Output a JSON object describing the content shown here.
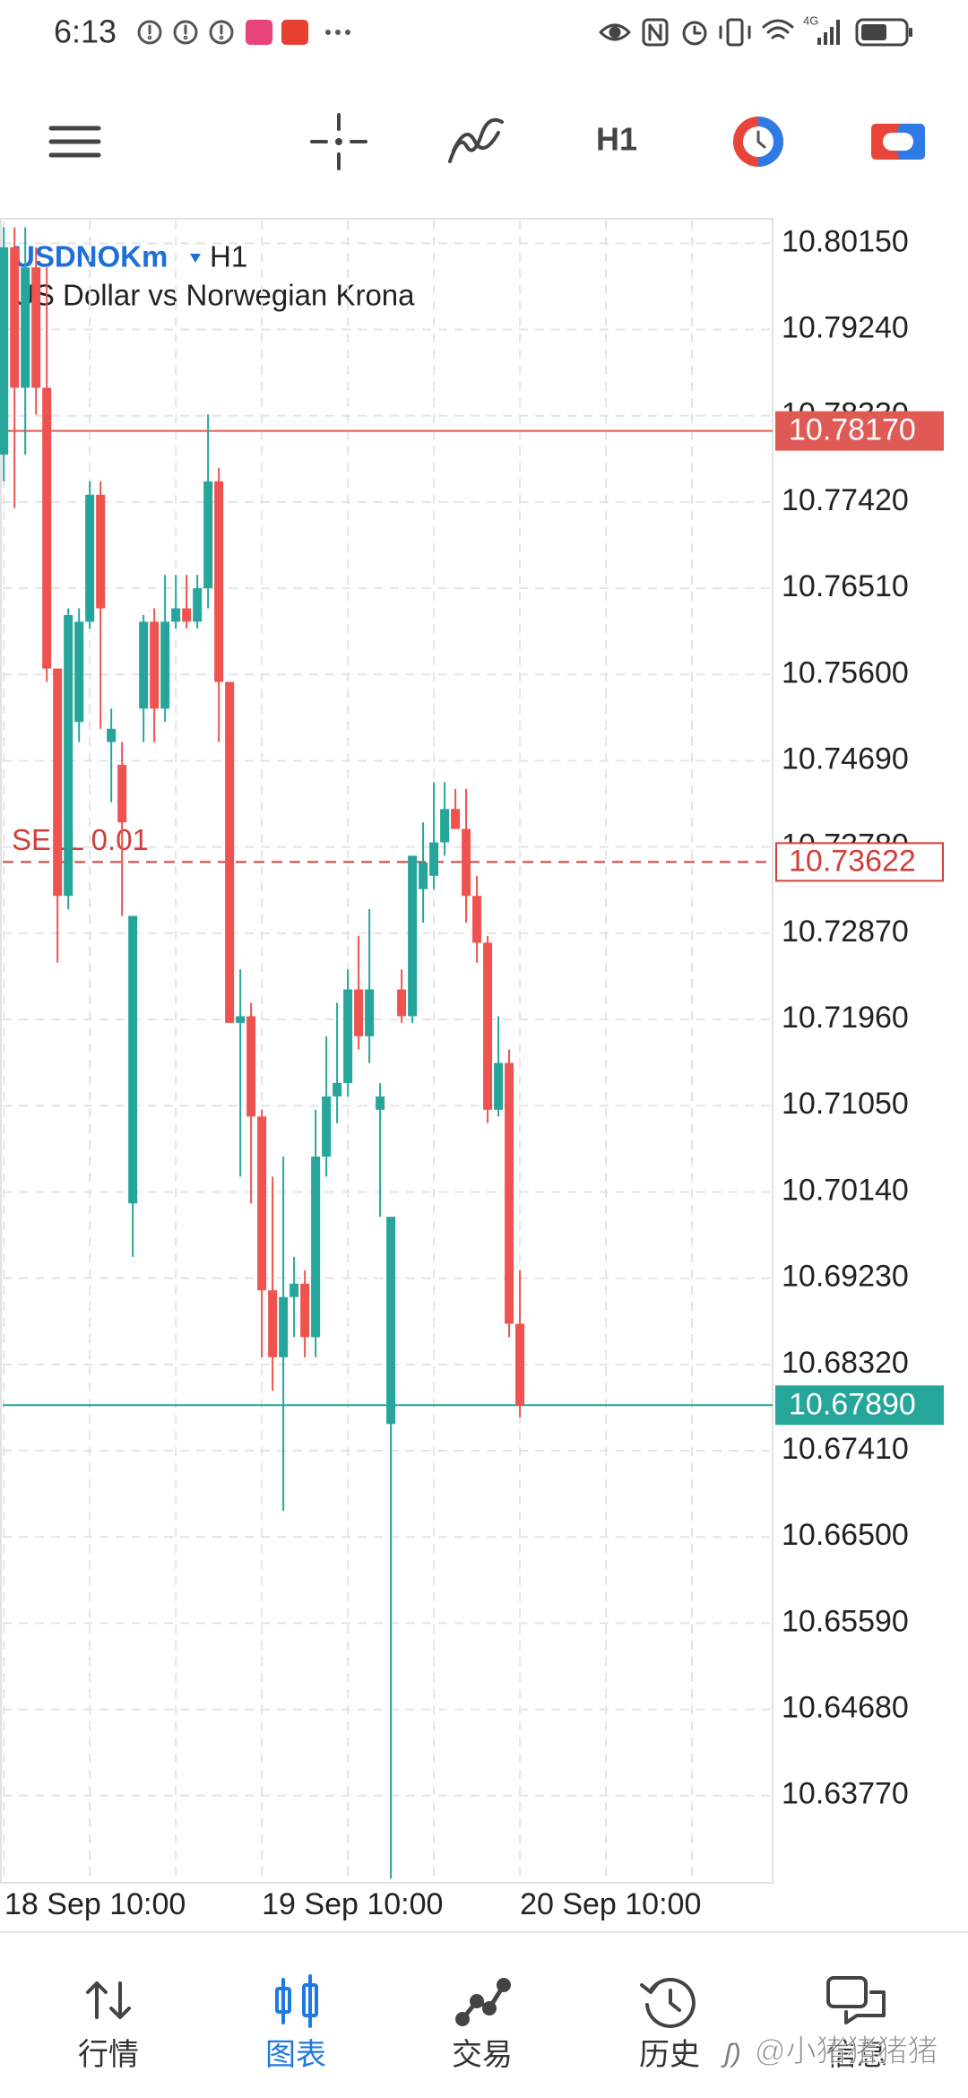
{
  "status_bar": {
    "time": "6:13",
    "network": "4G"
  },
  "toolbar": {
    "timeframe": "H1"
  },
  "chart_data": {
    "type": "candlestick",
    "symbol": "USDNOKm",
    "timeframe": "H1",
    "description": "US Dollar vs Norwegian Krona",
    "up_color": "#26a69a",
    "down_color": "#ef5350",
    "grid": true,
    "x": [
      0,
      1,
      2,
      3,
      4,
      5,
      6,
      7,
      8,
      9,
      10,
      11,
      12,
      13,
      14,
      15,
      16,
      17,
      18,
      19,
      20,
      21,
      22,
      23,
      24,
      25,
      26,
      27,
      28,
      29,
      30,
      31,
      32,
      33,
      34,
      35,
      36,
      37,
      38,
      39,
      40,
      41,
      42,
      43,
      44,
      45,
      46,
      47,
      48
    ],
    "open": [
      10.77921,
      10.80108,
      10.78626,
      10.79896,
      10.78626,
      10.75663,
      10.73264,
      10.75099,
      10.76157,
      10.77497,
      10.74887,
      10.74647,
      10.70019,
      10.7524,
      10.76157,
      10.7524,
      10.76157,
      10.76298,
      10.76157,
      10.7651,
      10.77638,
      10.75522,
      10.71924,
      10.71994,
      10.70936,
      10.69102,
      10.68396,
      10.69031,
      10.69172,
      10.68608,
      10.70513,
      10.71148,
      10.71289,
      10.72277,
      10.71783,
      10.71007,
      10.67691,
      10.72277,
      10.71994,
      10.73335,
      10.73476,
      10.73829,
      10.74181,
      10.7397,
      10.73264,
      10.7277,
      10.71007,
      10.71501,
      10.68749
    ],
    "high": [
      10.80319,
      10.80319,
      10.80319,
      10.80108,
      10.79896,
      10.75663,
      10.76298,
      10.76298,
      10.77638,
      10.77638,
      10.7524,
      10.74887,
      10.73053,
      10.76227,
      10.76298,
      10.76651,
      10.76651,
      10.76651,
      10.76651,
      10.78344,
      10.7778,
      10.75522,
      10.72488,
      10.72136,
      10.71007,
      10.70301,
      10.70513,
      10.69455,
      10.69314,
      10.71007,
      10.71783,
      10.72136,
      10.72488,
      10.72841,
      10.73123,
      10.71289,
      10.69878,
      10.72488,
      10.73688,
      10.7404,
      10.74464,
      10.74464,
      10.74393,
      10.74393,
      10.73476,
      10.72841,
      10.71994,
      10.71642,
      10.69314
    ],
    "low": [
      10.77638,
      10.77356,
      10.77921,
      10.78344,
      10.75522,
      10.72559,
      10.73123,
      10.74887,
      10.76086,
      10.75028,
      10.74252,
      10.73053,
      10.69455,
      10.74887,
      10.74887,
      10.75099,
      10.76086,
      10.76086,
      10.76086,
      10.76298,
      10.74887,
      10.71924,
      10.70301,
      10.70019,
      10.68396,
      10.68044,
      10.66774,
      10.68608,
      10.68396,
      10.68396,
      10.70301,
      10.70866,
      10.71148,
      10.71642,
      10.71501,
      10.69878,
      10.62894,
      10.71924,
      10.71924,
      10.72982,
      10.73335,
      10.73688,
      10.7397,
      10.72982,
      10.72559,
      10.70866,
      10.70936,
      10.68608,
      10.67761
    ],
    "close": [
      10.80108,
      10.78626,
      10.79896,
      10.78626,
      10.75663,
      10.73264,
      10.76227,
      10.76157,
      10.77497,
      10.76298,
      10.75028,
      10.7404,
      10.73053,
      10.76157,
      10.7524,
      10.76157,
      10.76298,
      10.76157,
      10.7651,
      10.77638,
      10.75522,
      10.71924,
      10.71994,
      10.70936,
      10.69102,
      10.68396,
      10.69031,
      10.69172,
      10.68608,
      10.70513,
      10.71148,
      10.71289,
      10.72277,
      10.71783,
      10.72277,
      10.71148,
      10.69878,
      10.71994,
      10.73688,
      10.73617,
      10.73829,
      10.74181,
      10.7397,
      10.73264,
      10.7277,
      10.71007,
      10.71501,
      10.68749,
      10.6789
    ],
    "xlim": [
      -0.1,
      71.5
    ],
    "xticks": [
      {
        "value": 0,
        "label": "18 Sep 10:00"
      },
      {
        "value": 8,
        "label": null
      },
      {
        "value": 16,
        "label": null
      },
      {
        "value": 24,
        "label": "19 Sep 10:00"
      },
      {
        "value": 32,
        "label": null
      },
      {
        "value": 40,
        "label": null
      },
      {
        "value": 48,
        "label": "20 Sep 10:00"
      },
      {
        "value": 56,
        "label": null
      },
      {
        "value": 64,
        "label": null
      }
    ],
    "ylim": [
      10.6285,
      10.8039
    ],
    "yticks": [
      {
        "value": 10.8015,
        "label": "10.80150"
      },
      {
        "value": 10.7924,
        "label": "10.79240"
      },
      {
        "value": 10.7833,
        "label": "10.78330"
      },
      {
        "value": 10.7742,
        "label": "10.77420"
      },
      {
        "value": 10.7651,
        "label": "10.76510"
      },
      {
        "value": 10.756,
        "label": "10.75600"
      },
      {
        "value": 10.7469,
        "label": "10.74690"
      },
      {
        "value": 10.7378,
        "label": "10.73780"
      },
      {
        "value": 10.7287,
        "label": "10.72870"
      },
      {
        "value": 10.7196,
        "label": "10.71960"
      },
      {
        "value": 10.7105,
        "label": "10.71050"
      },
      {
        "value": 10.7014,
        "label": "10.70140"
      },
      {
        "value": 10.6923,
        "label": "10.69230"
      },
      {
        "value": 10.6832,
        "label": "10.68320"
      },
      {
        "value": 10.6741,
        "label": "10.67410"
      },
      {
        "value": 10.665,
        "label": "10.66500"
      },
      {
        "value": 10.6559,
        "label": "10.65590"
      },
      {
        "value": 10.6468,
        "label": "10.64680"
      },
      {
        "value": 10.6377,
        "label": "10.63770"
      }
    ],
    "price_lines": [
      {
        "value": 10.7817,
        "label": "10.78170",
        "color": "#e05a55",
        "style": "solid",
        "fill": true
      },
      {
        "value": 10.73622,
        "label": "10.73622",
        "color": "#d23f3a",
        "style": "dashed",
        "fill": false,
        "order": "SELL 0.01"
      },
      {
        "value": 10.6789,
        "label": "10.67890",
        "color": "#26a69a",
        "style": "solid",
        "fill": true
      }
    ]
  },
  "bottom_nav": {
    "items": [
      "行情",
      "图表",
      "交易",
      "历史",
      "信息"
    ],
    "active": 1,
    "active_color": "#1f7ae0",
    "color": "#333333"
  },
  "watermark": "@小猪猪猪猪"
}
